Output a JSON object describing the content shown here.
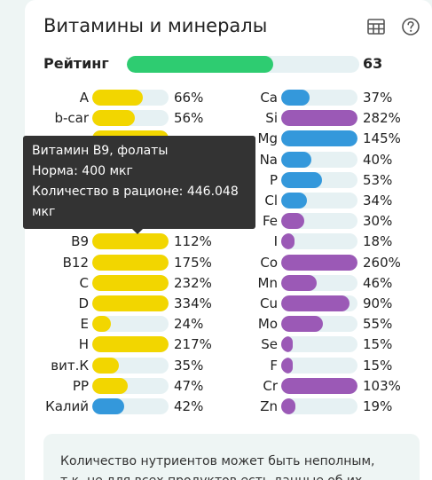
{
  "title": "Витамины и минералы",
  "icons": {
    "table": "table-icon",
    "help": "help-icon"
  },
  "rating": {
    "label": "Рейтинг",
    "value": "63",
    "fraction": 0.63
  },
  "colors": {
    "vitamin": "#f2d600",
    "mineral_blue": "#3498db",
    "mineral_purple": "#9b59b6",
    "rating": "#2ecc71",
    "track": "#e6f1f3"
  },
  "left": [
    {
      "label": "A",
      "pct": "66%",
      "fill": 0.66,
      "color": "#f2d600"
    },
    {
      "label": "b-car",
      "pct": "56%",
      "fill": 0.56,
      "color": "#f2d600"
    },
    {
      "label": "",
      "pct": "",
      "fill": 1.0,
      "color": "#f2d600"
    },
    {
      "label": "",
      "pct": "",
      "fill": 1.0,
      "color": "#f2d600"
    },
    {
      "label": "",
      "pct": "",
      "fill": 1.0,
      "color": "#f2d600"
    },
    {
      "label": "",
      "pct": "",
      "fill": 1.0,
      "color": "#f2d600"
    },
    {
      "label": "",
      "pct": "",
      "fill": 1.0,
      "color": "#f2d600"
    },
    {
      "label": "B9",
      "pct": "112%",
      "fill": 1.0,
      "color": "#f2d600"
    },
    {
      "label": "B12",
      "pct": "175%",
      "fill": 1.0,
      "color": "#f2d600"
    },
    {
      "label": "C",
      "pct": "232%",
      "fill": 1.0,
      "color": "#f2d600"
    },
    {
      "label": "D",
      "pct": "334%",
      "fill": 1.0,
      "color": "#f2d600"
    },
    {
      "label": "E",
      "pct": "24%",
      "fill": 0.24,
      "color": "#f2d600"
    },
    {
      "label": "H",
      "pct": "217%",
      "fill": 1.0,
      "color": "#f2d600"
    },
    {
      "label": "вит.К",
      "pct": "35%",
      "fill": 0.35,
      "color": "#f2d600"
    },
    {
      "label": "PP",
      "pct": "47%",
      "fill": 0.47,
      "color": "#f2d600"
    },
    {
      "label": "Калий",
      "pct": "42%",
      "fill": 0.42,
      "color": "#3498db"
    }
  ],
  "right": [
    {
      "label": "Ca",
      "pct": "37%",
      "fill": 0.37,
      "color": "#3498db"
    },
    {
      "label": "Si",
      "pct": "282%",
      "fill": 1.0,
      "color": "#9b59b6"
    },
    {
      "label": "Mg",
      "pct": "145%",
      "fill": 1.0,
      "color": "#3498db"
    },
    {
      "label": "Na",
      "pct": "40%",
      "fill": 0.4,
      "color": "#3498db"
    },
    {
      "label": "P",
      "pct": "53%",
      "fill": 0.53,
      "color": "#3498db"
    },
    {
      "label": "Cl",
      "pct": "34%",
      "fill": 0.34,
      "color": "#3498db"
    },
    {
      "label": "Fe",
      "pct": "30%",
      "fill": 0.3,
      "color": "#9b59b6"
    },
    {
      "label": "I",
      "pct": "18%",
      "fill": 0.18,
      "color": "#9b59b6"
    },
    {
      "label": "Co",
      "pct": "260%",
      "fill": 1.0,
      "color": "#9b59b6"
    },
    {
      "label": "Mn",
      "pct": "46%",
      "fill": 0.46,
      "color": "#9b59b6"
    },
    {
      "label": "Cu",
      "pct": "90%",
      "fill": 0.9,
      "color": "#9b59b6"
    },
    {
      "label": "Mo",
      "pct": "55%",
      "fill": 0.55,
      "color": "#9b59b6"
    },
    {
      "label": "Se",
      "pct": "15%",
      "fill": 0.15,
      "color": "#9b59b6"
    },
    {
      "label": "F",
      "pct": "15%",
      "fill": 0.15,
      "color": "#9b59b6"
    },
    {
      "label": "Cr",
      "pct": "103%",
      "fill": 1.0,
      "color": "#9b59b6"
    },
    {
      "label": "Zn",
      "pct": "19%",
      "fill": 0.19,
      "color": "#9b59b6"
    }
  ],
  "tooltip": {
    "line1": "Витамин B9, фолаты",
    "line2": "Норма: 400 мкг",
    "line3": "Количество в рационе: 446.048",
    "line4": "мкг"
  },
  "note": {
    "line1": "Количество нутриентов может быть неполным,",
    "line2": "т.к. не для всех продуктов есть данные об их"
  }
}
